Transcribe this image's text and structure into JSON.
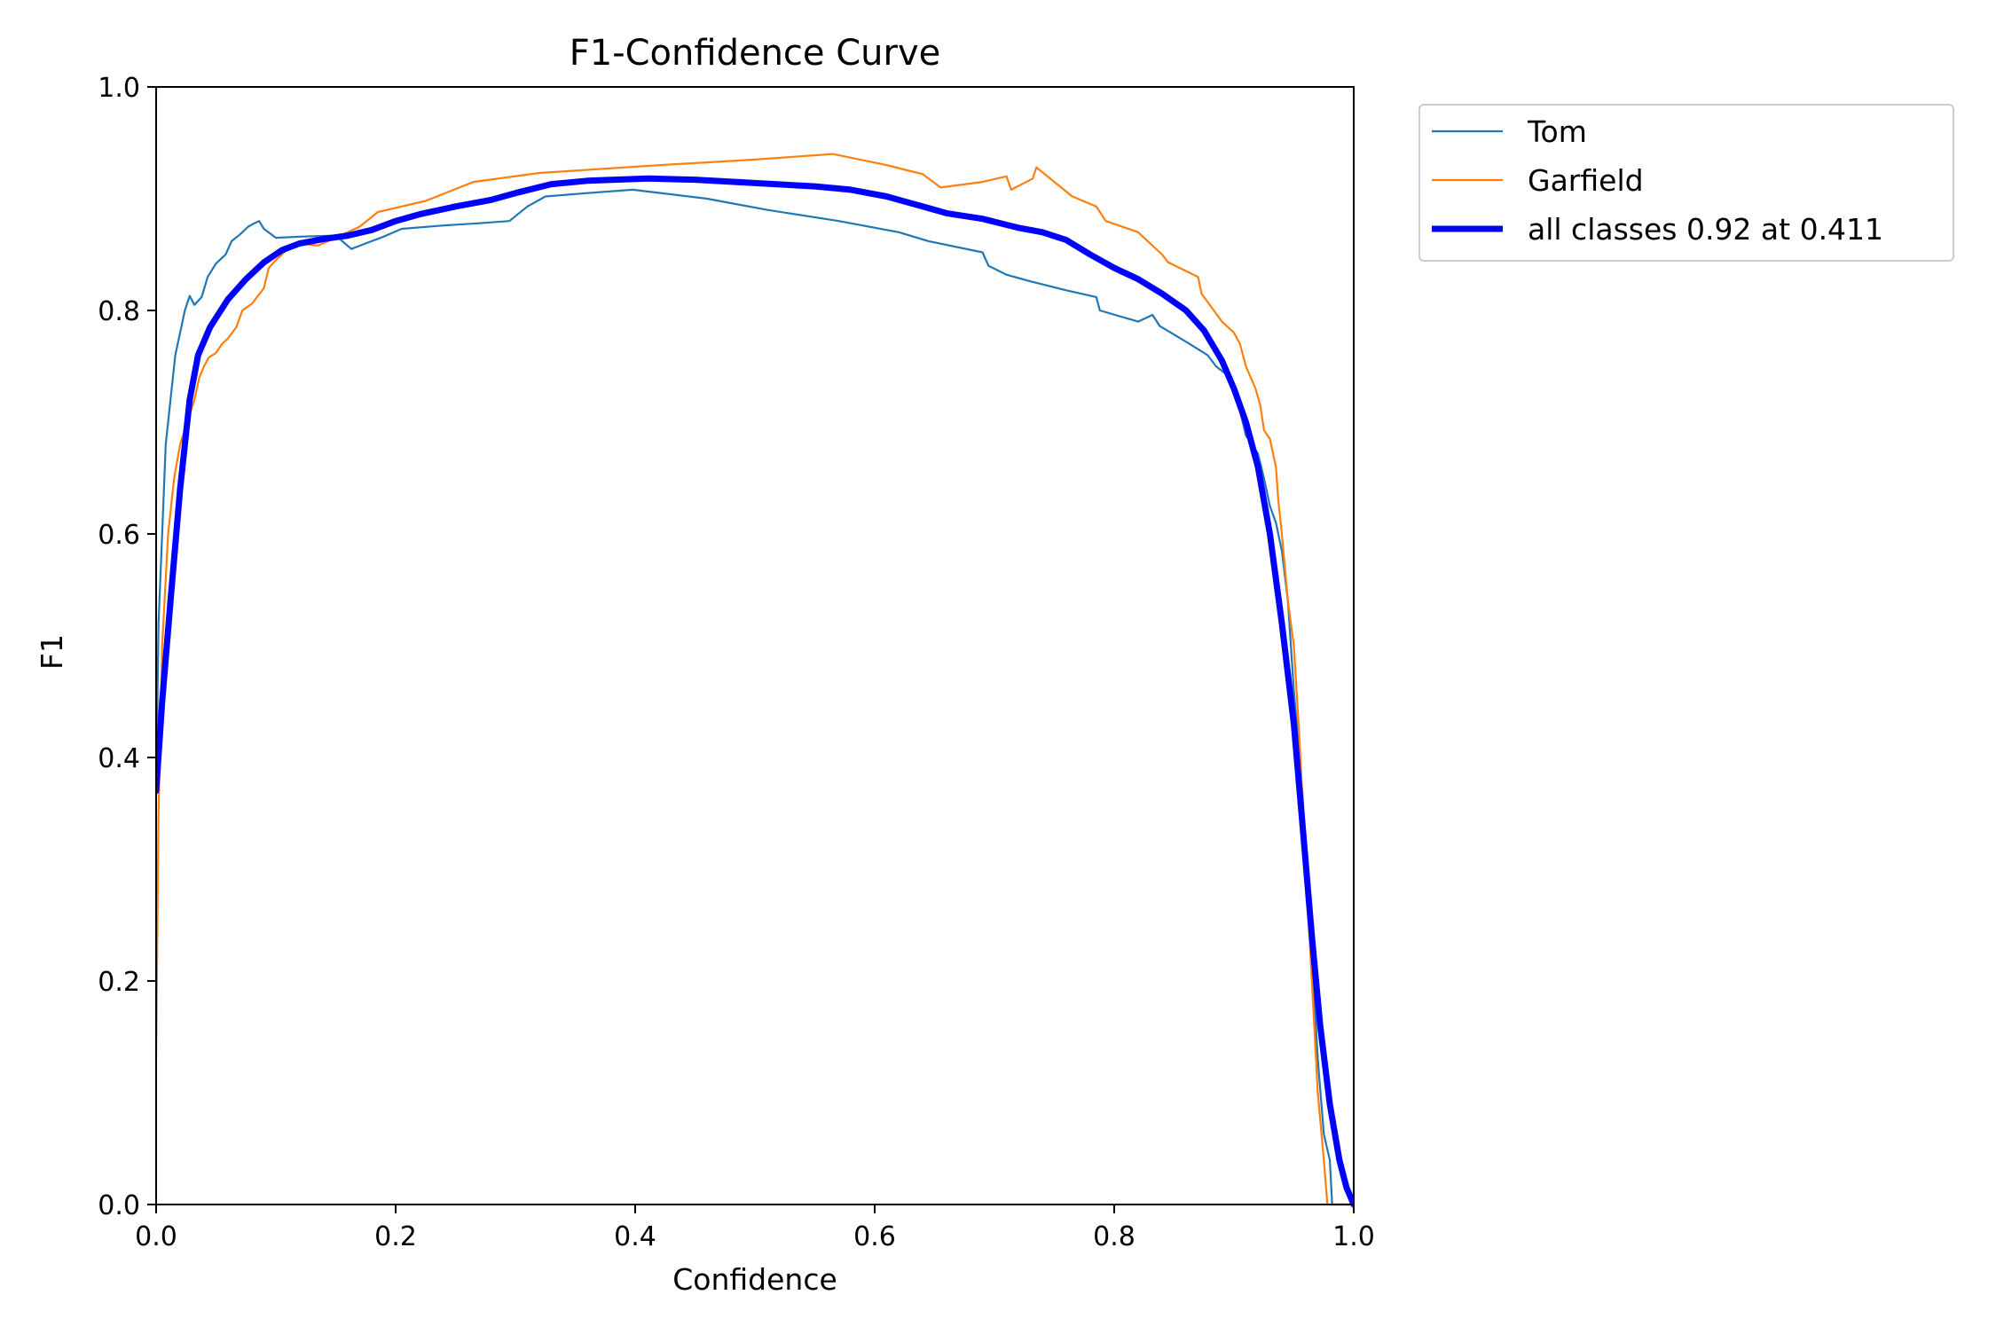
{
  "chart_data": {
    "type": "line",
    "title": "F1-Confidence Curve",
    "xlabel": "Confidence",
    "ylabel": "F1",
    "xlim": [
      0.0,
      1.0
    ],
    "ylim": [
      0.0,
      1.0
    ],
    "x_ticks": [
      "0.0",
      "0.2",
      "0.4",
      "0.6",
      "0.8",
      "1.0"
    ],
    "y_ticks": [
      "0.0",
      "0.2",
      "0.4",
      "0.6",
      "0.8",
      "1.0"
    ],
    "grid": false,
    "legend_position": "outside-top-right",
    "series": [
      {
        "name": "Tom",
        "color": "#1f77b4",
        "width": "thin",
        "points": [
          [
            0.0,
            0.37
          ],
          [
            0.002,
            0.52
          ],
          [
            0.005,
            0.6
          ],
          [
            0.008,
            0.68
          ],
          [
            0.012,
            0.72
          ],
          [
            0.016,
            0.76
          ],
          [
            0.02,
            0.78
          ],
          [
            0.024,
            0.8
          ],
          [
            0.028,
            0.813
          ],
          [
            0.032,
            0.805
          ],
          [
            0.038,
            0.812
          ],
          [
            0.043,
            0.83
          ],
          [
            0.05,
            0.842
          ],
          [
            0.058,
            0.85
          ],
          [
            0.063,
            0.862
          ],
          [
            0.07,
            0.868
          ],
          [
            0.077,
            0.875
          ],
          [
            0.082,
            0.878
          ],
          [
            0.086,
            0.88
          ],
          [
            0.09,
            0.873
          ],
          [
            0.1,
            0.865
          ],
          [
            0.12,
            0.866
          ],
          [
            0.15,
            0.867
          ],
          [
            0.163,
            0.855
          ],
          [
            0.175,
            0.86
          ],
          [
            0.19,
            0.866
          ],
          [
            0.205,
            0.873
          ],
          [
            0.24,
            0.876
          ],
          [
            0.27,
            0.878
          ],
          [
            0.295,
            0.88
          ],
          [
            0.31,
            0.893
          ],
          [
            0.325,
            0.902
          ],
          [
            0.36,
            0.905
          ],
          [
            0.398,
            0.908
          ],
          [
            0.46,
            0.9
          ],
          [
            0.51,
            0.89
          ],
          [
            0.57,
            0.88
          ],
          [
            0.62,
            0.87
          ],
          [
            0.645,
            0.862
          ],
          [
            0.69,
            0.852
          ],
          [
            0.695,
            0.84
          ],
          [
            0.71,
            0.832
          ],
          [
            0.73,
            0.826
          ],
          [
            0.76,
            0.818
          ],
          [
            0.785,
            0.812
          ],
          [
            0.788,
            0.8
          ],
          [
            0.82,
            0.79
          ],
          [
            0.832,
            0.796
          ],
          [
            0.838,
            0.786
          ],
          [
            0.86,
            0.772
          ],
          [
            0.878,
            0.76
          ],
          [
            0.885,
            0.75
          ],
          [
            0.897,
            0.74
          ],
          [
            0.905,
            0.71
          ],
          [
            0.91,
            0.688
          ],
          [
            0.92,
            0.672
          ],
          [
            0.925,
            0.65
          ],
          [
            0.93,
            0.625
          ],
          [
            0.935,
            0.61
          ],
          [
            0.94,
            0.585
          ],
          [
            0.945,
            0.54
          ],
          [
            0.95,
            0.46
          ],
          [
            0.957,
            0.37
          ],
          [
            0.963,
            0.26
          ],
          [
            0.97,
            0.13
          ],
          [
            0.975,
            0.063
          ],
          [
            0.98,
            0.04
          ],
          [
            0.982,
            0.0
          ],
          [
            1.0,
            0.0
          ]
        ]
      },
      {
        "name": "Garfield",
        "color": "#ff7f0e",
        "width": "thin",
        "points": [
          [
            0.0,
            0.13
          ],
          [
            0.002,
            0.35
          ],
          [
            0.005,
            0.5
          ],
          [
            0.01,
            0.6
          ],
          [
            0.015,
            0.65
          ],
          [
            0.02,
            0.68
          ],
          [
            0.026,
            0.7
          ],
          [
            0.032,
            0.72
          ],
          [
            0.036,
            0.74
          ],
          [
            0.04,
            0.75
          ],
          [
            0.044,
            0.758
          ],
          [
            0.05,
            0.762
          ],
          [
            0.055,
            0.77
          ],
          [
            0.06,
            0.775
          ],
          [
            0.067,
            0.785
          ],
          [
            0.072,
            0.8
          ],
          [
            0.08,
            0.806
          ],
          [
            0.09,
            0.82
          ],
          [
            0.094,
            0.838
          ],
          [
            0.1,
            0.845
          ],
          [
            0.11,
            0.855
          ],
          [
            0.12,
            0.86
          ],
          [
            0.135,
            0.858
          ],
          [
            0.15,
            0.865
          ],
          [
            0.17,
            0.875
          ],
          [
            0.185,
            0.888
          ],
          [
            0.225,
            0.898
          ],
          [
            0.265,
            0.915
          ],
          [
            0.32,
            0.923
          ],
          [
            0.42,
            0.93
          ],
          [
            0.5,
            0.935
          ],
          [
            0.565,
            0.94
          ],
          [
            0.61,
            0.93
          ],
          [
            0.64,
            0.922
          ],
          [
            0.655,
            0.91
          ],
          [
            0.69,
            0.915
          ],
          [
            0.71,
            0.92
          ],
          [
            0.714,
            0.908
          ],
          [
            0.732,
            0.918
          ],
          [
            0.735,
            0.928
          ],
          [
            0.75,
            0.915
          ],
          [
            0.765,
            0.902
          ],
          [
            0.785,
            0.893
          ],
          [
            0.793,
            0.88
          ],
          [
            0.82,
            0.87
          ],
          [
            0.83,
            0.86
          ],
          [
            0.84,
            0.85
          ],
          [
            0.845,
            0.843
          ],
          [
            0.87,
            0.83
          ],
          [
            0.873,
            0.815
          ],
          [
            0.89,
            0.79
          ],
          [
            0.9,
            0.78
          ],
          [
            0.905,
            0.77
          ],
          [
            0.91,
            0.75
          ],
          [
            0.918,
            0.73
          ],
          [
            0.922,
            0.715
          ],
          [
            0.925,
            0.693
          ],
          [
            0.93,
            0.685
          ],
          [
            0.935,
            0.66
          ],
          [
            0.937,
            0.63
          ],
          [
            0.94,
            0.6
          ],
          [
            0.945,
            0.54
          ],
          [
            0.95,
            0.5
          ],
          [
            0.955,
            0.41
          ],
          [
            0.96,
            0.3
          ],
          [
            0.965,
            0.2
          ],
          [
            0.97,
            0.1
          ],
          [
            0.975,
            0.04
          ],
          [
            0.978,
            0.0
          ],
          [
            1.0,
            0.0
          ]
        ]
      },
      {
        "name": "all classes 0.92 at 0.411",
        "color": "#0000ff",
        "width": "thick",
        "points": [
          [
            0.0,
            0.37
          ],
          [
            0.005,
            0.45
          ],
          [
            0.012,
            0.54
          ],
          [
            0.02,
            0.64
          ],
          [
            0.028,
            0.72
          ],
          [
            0.035,
            0.76
          ],
          [
            0.045,
            0.785
          ],
          [
            0.06,
            0.81
          ],
          [
            0.075,
            0.828
          ],
          [
            0.09,
            0.843
          ],
          [
            0.105,
            0.854
          ],
          [
            0.12,
            0.86
          ],
          [
            0.14,
            0.864
          ],
          [
            0.16,
            0.867
          ],
          [
            0.18,
            0.872
          ],
          [
            0.2,
            0.88
          ],
          [
            0.22,
            0.886
          ],
          [
            0.25,
            0.893
          ],
          [
            0.28,
            0.899
          ],
          [
            0.3,
            0.905
          ],
          [
            0.33,
            0.913
          ],
          [
            0.36,
            0.916
          ],
          [
            0.411,
            0.918
          ],
          [
            0.45,
            0.917
          ],
          [
            0.5,
            0.914
          ],
          [
            0.55,
            0.911
          ],
          [
            0.58,
            0.908
          ],
          [
            0.61,
            0.902
          ],
          [
            0.64,
            0.893
          ],
          [
            0.66,
            0.887
          ],
          [
            0.69,
            0.882
          ],
          [
            0.72,
            0.874
          ],
          [
            0.74,
            0.87
          ],
          [
            0.76,
            0.863
          ],
          [
            0.78,
            0.85
          ],
          [
            0.8,
            0.838
          ],
          [
            0.82,
            0.828
          ],
          [
            0.84,
            0.815
          ],
          [
            0.86,
            0.8
          ],
          [
            0.875,
            0.782
          ],
          [
            0.89,
            0.755
          ],
          [
            0.9,
            0.73
          ],
          [
            0.91,
            0.7
          ],
          [
            0.92,
            0.66
          ],
          [
            0.93,
            0.6
          ],
          [
            0.94,
            0.52
          ],
          [
            0.95,
            0.43
          ],
          [
            0.958,
            0.33
          ],
          [
            0.965,
            0.24
          ],
          [
            0.972,
            0.16
          ],
          [
            0.98,
            0.09
          ],
          [
            0.988,
            0.04
          ],
          [
            0.994,
            0.015
          ],
          [
            1.0,
            0.0
          ]
        ]
      }
    ]
  }
}
